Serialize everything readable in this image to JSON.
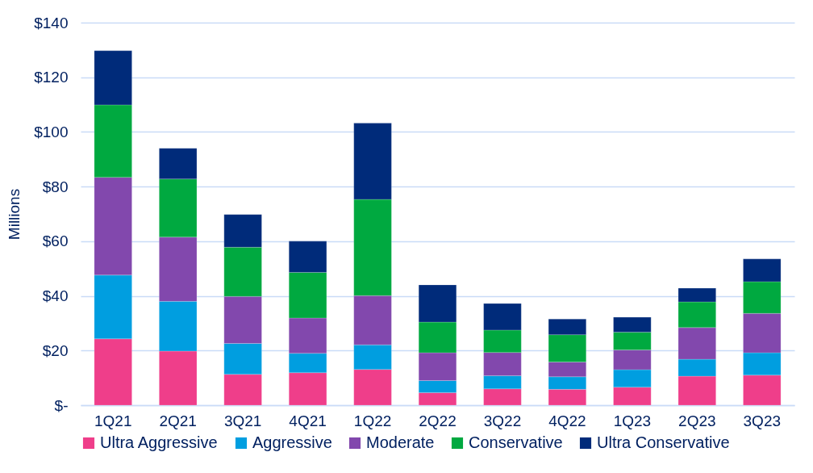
{
  "chart_data": {
    "type": "bar",
    "stacked": true,
    "ylabel": "Millions",
    "categories": [
      "1Q21",
      "2Q21",
      "3Q21",
      "4Q21",
      "1Q22",
      "2Q22",
      "3Q22",
      "4Q22",
      "1Q23",
      "2Q23",
      "3Q23"
    ],
    "series": [
      {
        "name": "Ultra Aggressive",
        "color": "#ef3e8a",
        "values": [
          24.3,
          19.8,
          11.3,
          11.9,
          13.1,
          4.6,
          6,
          5.8,
          6.6,
          10.6,
          11
        ]
      },
      {
        "name": "Aggressive",
        "color": "#009ee0",
        "values": [
          23.3,
          18.2,
          11.3,
          7.1,
          9,
          4.4,
          4.8,
          4.6,
          6.4,
          6.2,
          8.2
        ]
      },
      {
        "name": "Moderate",
        "color": "#8248ad",
        "values": [
          35.8,
          23.5,
          17.2,
          12.9,
          18,
          10.2,
          8.5,
          5.4,
          7.2,
          11.6,
          14.4
        ]
      },
      {
        "name": "Conservative",
        "color": "#00a940",
        "values": [
          26.5,
          21.3,
          18,
          16.7,
          35.2,
          11.2,
          8.2,
          10,
          6.5,
          9.4,
          11.6
        ]
      },
      {
        "name": "Ultra Conservative",
        "color": "#002b7a",
        "values": [
          19.8,
          11.2,
          12,
          11.4,
          27.9,
          13.6,
          9.7,
          5.7,
          5.5,
          5,
          8.3
        ]
      }
    ],
    "ylim": [
      0,
      140
    ],
    "yticks": [
      {
        "value": 0,
        "label": "$-"
      },
      {
        "value": 20,
        "label": "$20"
      },
      {
        "value": 40,
        "label": "$40"
      },
      {
        "value": 60,
        "label": "$60"
      },
      {
        "value": 80,
        "label": "$80"
      },
      {
        "value": 100,
        "label": "$100"
      },
      {
        "value": 120,
        "label": "$120"
      },
      {
        "value": 140,
        "label": "$140"
      }
    ],
    "grid": "y",
    "legend": "bottom"
  }
}
